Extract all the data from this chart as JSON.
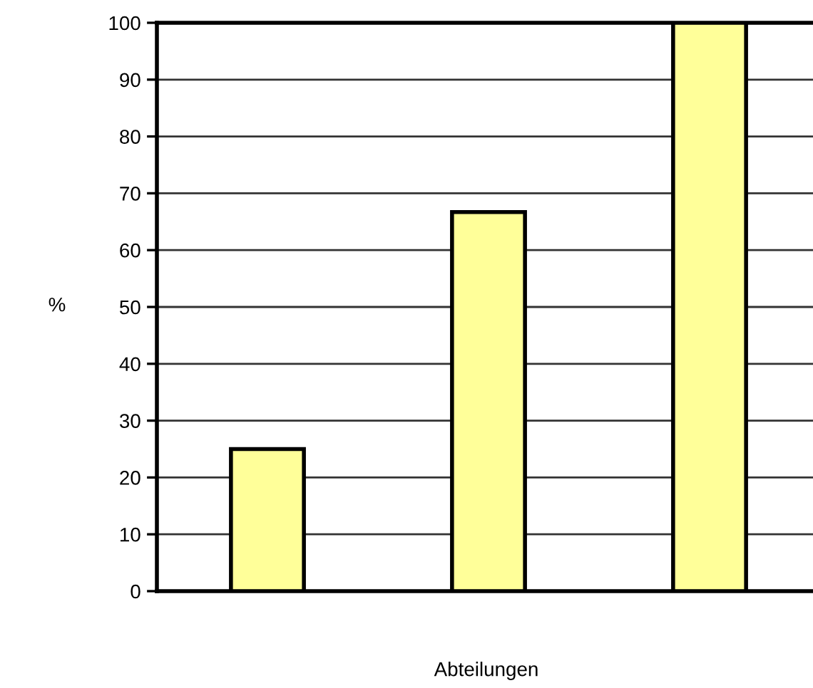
{
  "chart_data": {
    "type": "bar",
    "categories": [
      null,
      null,
      null
    ],
    "values": [
      25,
      66.7,
      100
    ],
    "color": "#ffff99",
    "xlabel": "Abteilungen",
    "ylabel": "%",
    "ylim": [
      0,
      100
    ],
    "yticks": [
      0,
      10,
      20,
      30,
      40,
      50,
      60,
      70,
      80,
      90,
      100
    ],
    "grid": "y"
  }
}
